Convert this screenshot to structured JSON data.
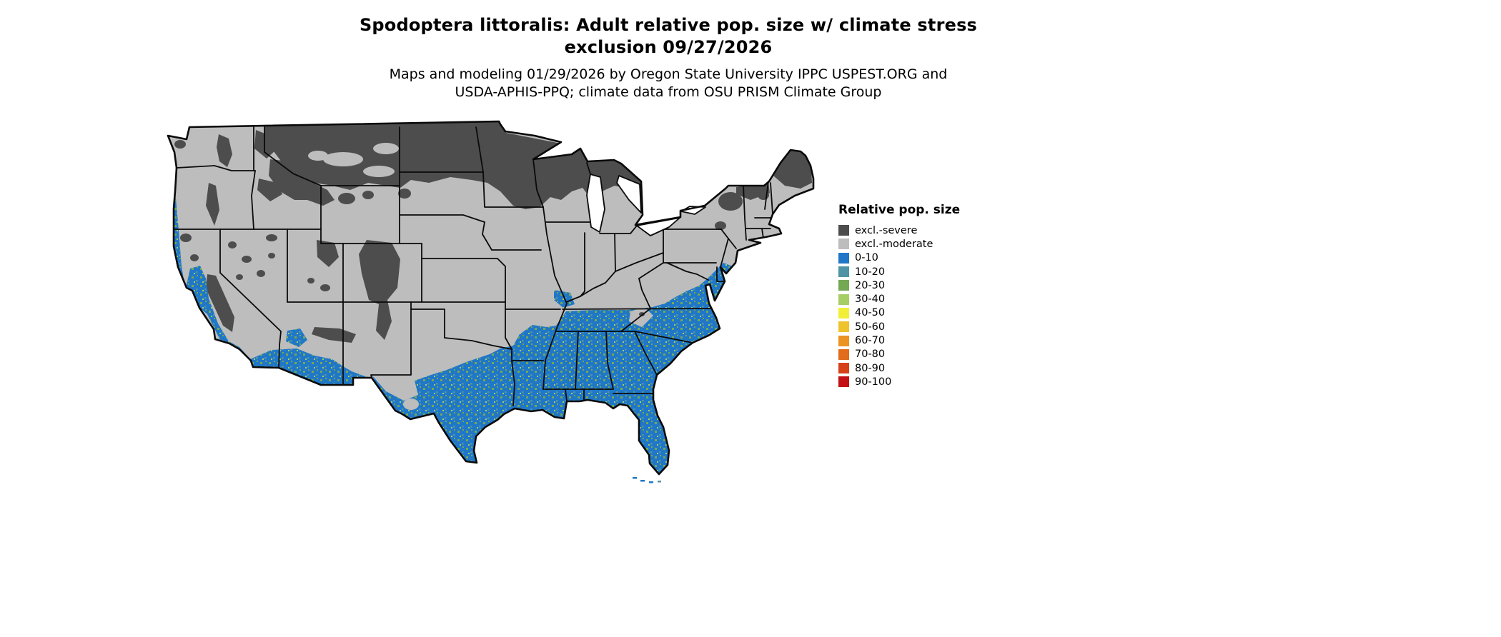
{
  "title": {
    "line1": "Spodoptera littoralis: Adult relative pop. size w/ climate stress",
    "line2": "exclusion 09/27/2026"
  },
  "subtitle": {
    "line1": "Maps and modeling 01/29/2026 by Oregon State University IPPC USPEST.ORG and",
    "line2": "USDA-APHIS-PPQ; climate data from OSU PRISM Climate Group"
  },
  "legend": {
    "title": "Relative pop. size",
    "entries": [
      {
        "label": "excl.-severe",
        "color": "#4d4d4d"
      },
      {
        "label": "excl.-moderate",
        "color": "#bdbdbd"
      },
      {
        "label": "0-10",
        "color": "#2077c8"
      },
      {
        "label": "10-20",
        "color": "#4e94a5"
      },
      {
        "label": "20-30",
        "color": "#74a853"
      },
      {
        "label": "30-40",
        "color": "#a6ce64"
      },
      {
        "label": "40-50",
        "color": "#f2ef38"
      },
      {
        "label": "50-60",
        "color": "#efc32e"
      },
      {
        "label": "60-70",
        "color": "#ec9324"
      },
      {
        "label": "70-80",
        "color": "#e06c1c"
      },
      {
        "label": "80-90",
        "color": "#d6411a"
      },
      {
        "label": "90-100",
        "color": "#c40f14"
      }
    ]
  },
  "map": {
    "region": "Contiguous United States",
    "date_shown": "09/27/2026",
    "species": "Spodoptera littoralis",
    "summary": "Northern tier (MT, ND, northern MN/WI, upper MI, northern Rockies, Adirondacks, Maine) excluded-severe (dark gray); central band excluded-moderate (light gray); southern band (CA valleys/coast, southern AZ-NM, southern/eastern TX, Gulf Coast, Southeast, FL, Atlantic coastal plain to NJ, TN) relative pop. size 0-10 (blue) with scattered 10-30 speckles"
  }
}
